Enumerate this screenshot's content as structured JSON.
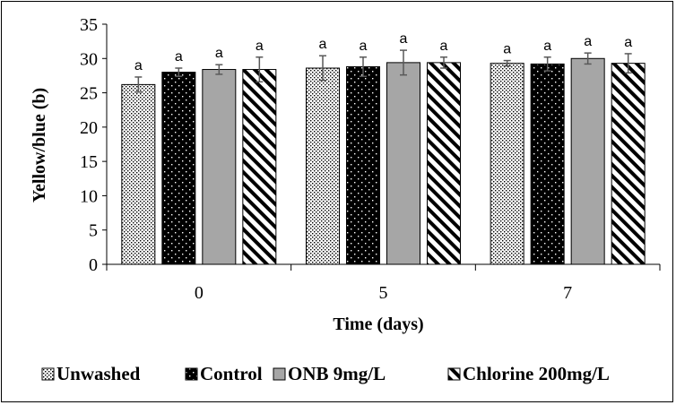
{
  "chart_data": {
    "type": "bar",
    "xlabel": "Time (days)",
    "ylabel": "Yellow/blue (b)",
    "categories": [
      "0",
      "5",
      "7"
    ],
    "ylim": [
      0,
      35
    ],
    "yticks": [
      0,
      5,
      10,
      15,
      20,
      25,
      30,
      35
    ],
    "grid": false,
    "legend_position": "bottom",
    "series": [
      {
        "name": "Unwashed",
        "pattern": "dots-dense",
        "values": [
          26.2,
          28.6,
          29.3
        ],
        "errors": [
          1.1,
          1.8,
          0.4
        ],
        "labels": [
          "a",
          "a",
          "a"
        ]
      },
      {
        "name": "Control",
        "pattern": "dots-on-black",
        "values": [
          28.0,
          28.8,
          29.2
        ],
        "errors": [
          0.6,
          1.4,
          1.0
        ],
        "labels": [
          "a",
          "a",
          "a"
        ]
      },
      {
        "name": "ONB 9mg/L",
        "pattern": "solid-gray",
        "values": [
          28.4,
          29.4,
          30.0
        ],
        "errors": [
          0.7,
          1.8,
          0.8
        ],
        "labels": [
          "a",
          "a",
          "a"
        ]
      },
      {
        "name": "Chlorine 200mg/L",
        "pattern": "diagonal-stripes",
        "values": [
          28.4,
          29.4,
          29.3
        ],
        "errors": [
          1.8,
          0.8,
          1.4
        ],
        "labels": [
          "a",
          "a",
          "a"
        ]
      }
    ],
    "colors": {
      "bar_edge": "#000000",
      "solid_gray": "#a6a6a6",
      "error_bar": "#595959"
    }
  }
}
